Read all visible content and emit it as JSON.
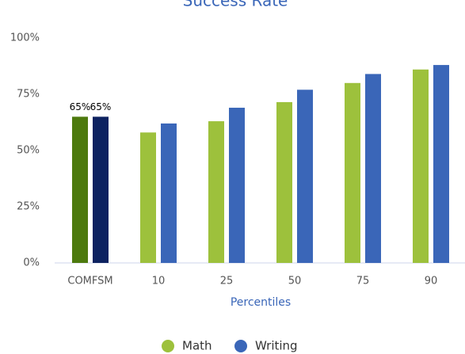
{
  "chart_data": {
    "type": "bar",
    "title": "Success Rate",
    "categories": [
      "COMFSM",
      "10",
      "25",
      "50",
      "75",
      "90"
    ],
    "x_label": "Percentiles",
    "series": [
      {
        "name": "Math",
        "color": "#9dc13c",
        "colors": [
          "#4d7a0e",
          "#9dc13c",
          "#9dc13c",
          "#9dc13c",
          "#9dc13c",
          "#9dc13c"
        ],
        "values": [
          65,
          58,
          63,
          71.5,
          80,
          86
        ],
        "value_labels": [
          "65%",
          null,
          null,
          null,
          null,
          null
        ]
      },
      {
        "name": "Writing",
        "color": "#3a66b8",
        "colors": [
          "#0d2260",
          "#3a66b8",
          "#3a66b8",
          "#3a66b8",
          "#3a66b8",
          "#3a66b8"
        ],
        "values": [
          65,
          62,
          69,
          77,
          84,
          88
        ],
        "value_labels": [
          "65%",
          null,
          null,
          null,
          null,
          null
        ]
      }
    ],
    "ylim": [
      0,
      100
    ],
    "yticks": [
      {
        "value": 0,
        "label": "0%"
      },
      {
        "value": 25,
        "label": "25%"
      },
      {
        "value": 50,
        "label": "50%"
      },
      {
        "value": 75,
        "label": "75%"
      },
      {
        "value": 100,
        "label": "100%"
      }
    ],
    "grid": false,
    "legend": "bottom"
  }
}
